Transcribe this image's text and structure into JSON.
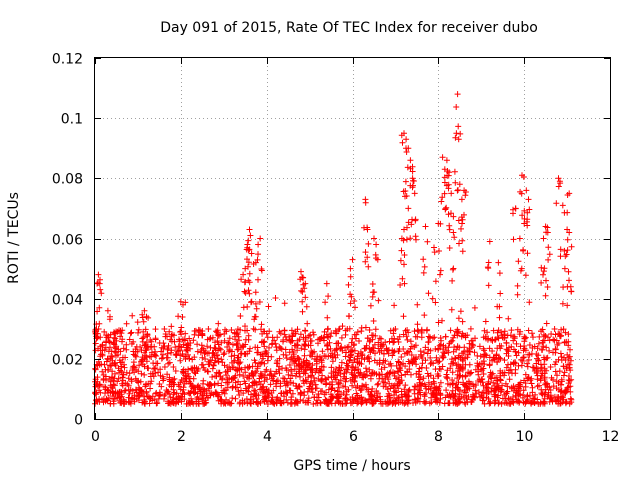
{
  "chart_data": {
    "type": "scatter",
    "title": "Day 091 of 2015, Rate Of TEC Index for receiver dubo",
    "xlabel": "GPS time / hours",
    "ylabel": "ROTI / TECUs",
    "xlim": [
      0,
      12
    ],
    "ylim": [
      0,
      0.12
    ],
    "grid": true,
    "marker": "+",
    "color": "#ff0000",
    "x_ticks": [
      0,
      2,
      4,
      6,
      8,
      10,
      12
    ],
    "x_tick_labels": [
      "0",
      "2",
      "4",
      "6",
      "8",
      "10",
      "12"
    ],
    "y_ticks": [
      0,
      0.02,
      0.04,
      0.06,
      0.08,
      0.1,
      0.12
    ],
    "y_tick_labels": [
      "0",
      "0.02",
      "0.04",
      "0.06",
      "0.08",
      "0.1",
      "0.12"
    ],
    "series": [
      {
        "name": "ROTI",
        "x_range": [
          0.0,
          11.1
        ],
        "baseline_range": [
          0.005,
          0.03
        ],
        "points": [
          [
            0.05,
            0.045
          ],
          [
            0.08,
            0.048
          ],
          [
            0.12,
            0.043
          ],
          [
            0.3,
            0.036
          ],
          [
            0.35,
            0.034
          ],
          [
            1.15,
            0.036
          ],
          [
            1.2,
            0.034
          ],
          [
            2.0,
            0.039
          ],
          [
            2.05,
            0.038
          ],
          [
            3.45,
            0.048
          ],
          [
            3.5,
            0.05
          ],
          [
            3.55,
            0.058
          ],
          [
            3.6,
            0.063
          ],
          [
            3.62,
            0.061
          ],
          [
            3.65,
            0.055
          ],
          [
            3.8,
            0.058
          ],
          [
            3.85,
            0.06
          ],
          [
            3.75,
            0.052
          ],
          [
            4.8,
            0.049
          ],
          [
            4.85,
            0.047
          ],
          [
            4.9,
            0.045
          ],
          [
            5.4,
            0.045
          ],
          [
            5.95,
            0.05
          ],
          [
            6.0,
            0.053
          ],
          [
            6.3,
            0.073
          ],
          [
            6.35,
            0.063
          ],
          [
            6.5,
            0.06
          ],
          [
            6.55,
            0.058
          ],
          [
            7.2,
            0.095
          ],
          [
            7.25,
            0.093
          ],
          [
            7.3,
            0.09
          ],
          [
            7.35,
            0.086
          ],
          [
            7.4,
            0.08
          ],
          [
            7.45,
            0.075
          ],
          [
            7.3,
            0.07
          ],
          [
            7.2,
            0.063
          ],
          [
            7.15,
            0.06
          ],
          [
            7.7,
            0.064
          ],
          [
            7.9,
            0.057
          ],
          [
            8.0,
            0.065
          ],
          [
            8.1,
            0.087
          ],
          [
            8.15,
            0.083
          ],
          [
            8.2,
            0.086
          ],
          [
            8.25,
            0.082
          ],
          [
            8.3,
            0.075
          ],
          [
            8.45,
            0.108
          ],
          [
            8.42,
            0.095
          ],
          [
            8.5,
            0.078
          ],
          [
            8.55,
            0.073
          ],
          [
            8.6,
            0.076
          ],
          [
            8.35,
            0.062
          ],
          [
            9.2,
            0.059
          ],
          [
            9.4,
            0.052
          ],
          [
            9.8,
            0.07
          ],
          [
            9.95,
            0.081
          ],
          [
            10.05,
            0.076
          ],
          [
            10.1,
            0.073
          ],
          [
            10.0,
            0.065
          ],
          [
            9.9,
            0.06
          ],
          [
            10.5,
            0.064
          ],
          [
            10.55,
            0.062
          ],
          [
            10.45,
            0.06
          ],
          [
            10.8,
            0.08
          ],
          [
            10.9,
            0.071
          ],
          [
            11.0,
            0.063
          ],
          [
            11.05,
            0.062
          ],
          [
            11.05,
            0.075
          ],
          [
            10.95,
            0.05
          ]
        ]
      }
    ]
  }
}
